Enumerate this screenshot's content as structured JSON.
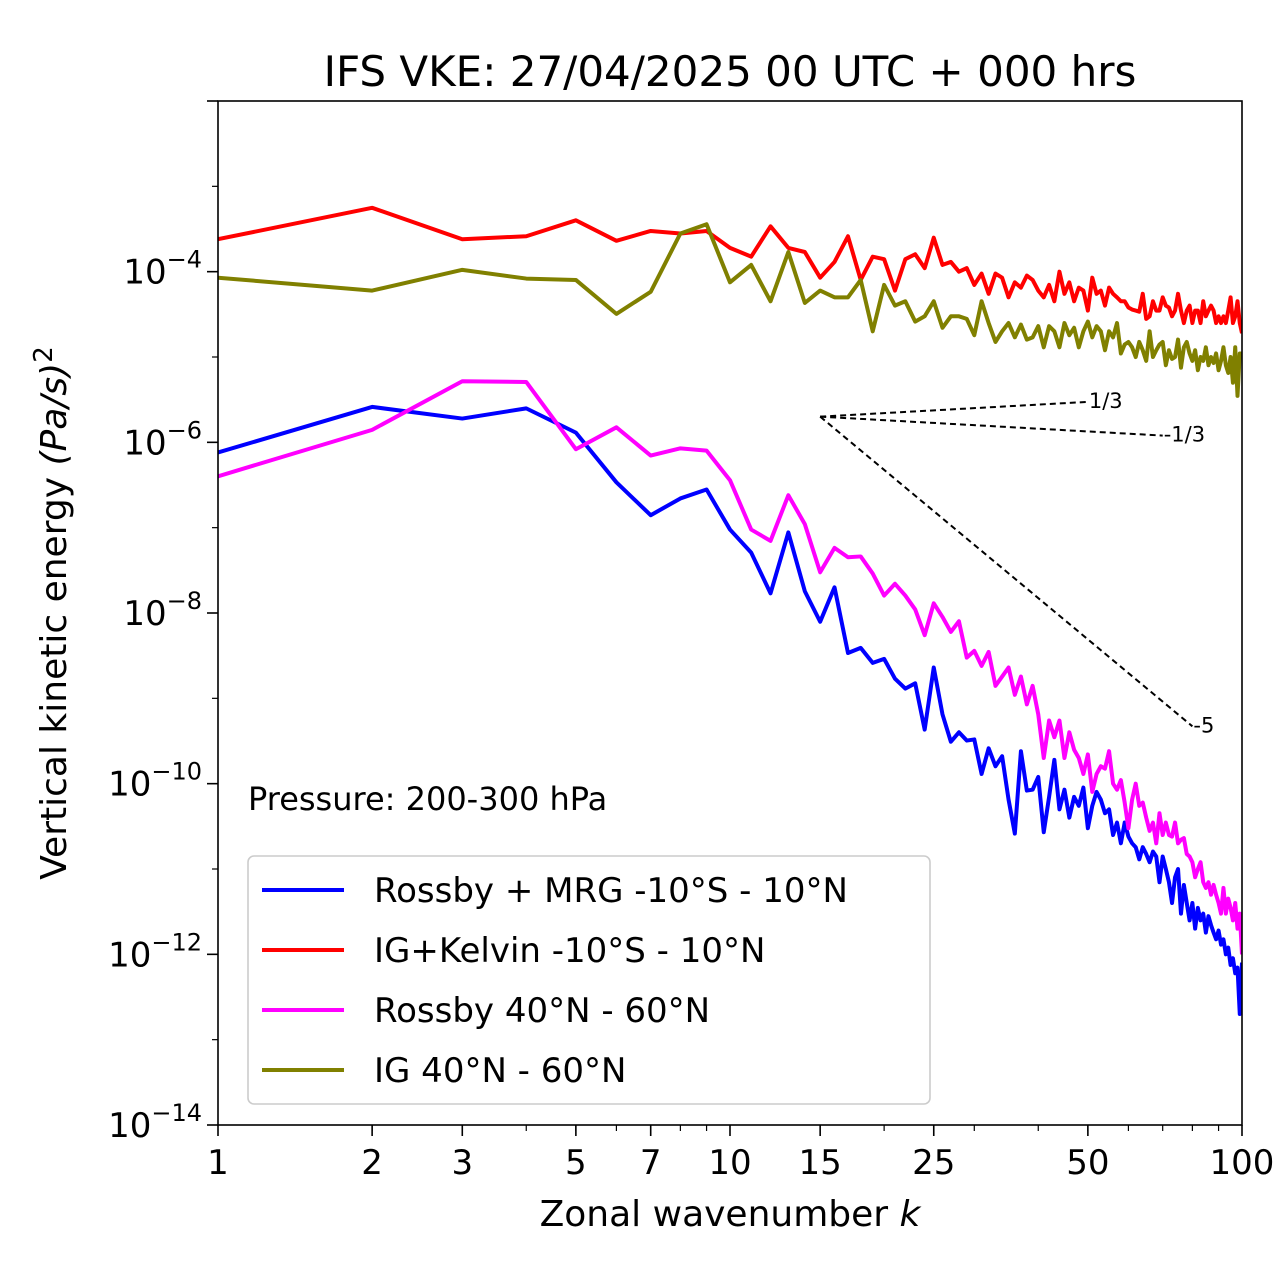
{
  "chart_data": {
    "type": "line",
    "title": "IFS VKE: 27/04/2025 00 UTC + 000 hrs",
    "xlabel": "Zonal wavenumber",
    "xlabel_var": "k",
    "ylabel": "Vertical kinetic energy",
    "ylabel_unit": "(Pa/s)",
    "ylabel_exp": "2",
    "xscale": "log",
    "yscale": "log",
    "xlim": [
      1,
      100
    ],
    "ylim": [
      1e-14,
      0.01
    ],
    "x_ticks": [
      1,
      2,
      3,
      5,
      7,
      10,
      15,
      25,
      50,
      100
    ],
    "y_ticks": [
      {
        "value": 1e-14,
        "base": "10",
        "exp": "−14"
      },
      {
        "value": 1e-12,
        "base": "10",
        "exp": "−12"
      },
      {
        "value": 1e-10,
        "base": "10",
        "exp": "−10"
      },
      {
        "value": 1e-08,
        "base": "10",
        "exp": "−8"
      },
      {
        "value": 1e-06,
        "base": "10",
        "exp": "−6"
      },
      {
        "value": 0.0001,
        "base": "10",
        "exp": "−4"
      }
    ],
    "annotation": "Pressure: 200-300 hPa",
    "legend_position": "lower-left",
    "series": [
      {
        "name": "Rossby + MRG -10°S - 10°N",
        "color": "#0000ff",
        "x": [
          1,
          2,
          3,
          4,
          5,
          6,
          7,
          8,
          9,
          10,
          11,
          12,
          13,
          14,
          15,
          16,
          17,
          18,
          19,
          20,
          21,
          22,
          23,
          24,
          25,
          26,
          27,
          28,
          29,
          30,
          31,
          32,
          33,
          34,
          35,
          36,
          37,
          38,
          39,
          40,
          41,
          42,
          43,
          44,
          45,
          46,
          47,
          48,
          49,
          50,
          51,
          52,
          53,
          54,
          55,
          56,
          57,
          58,
          59,
          60,
          61,
          62,
          63,
          64,
          65,
          66,
          67,
          68,
          69,
          70,
          71,
          72,
          73,
          74,
          75,
          76,
          77,
          78,
          79,
          80,
          81,
          82,
          83,
          84,
          85,
          86,
          87,
          88,
          89,
          90,
          91,
          92,
          93,
          94,
          95,
          96,
          97,
          98,
          99,
          100
        ],
        "y": [
          7.6e-07,
          2.6e-06,
          1.9e-06,
          2.5e-06,
          1.3e-06,
          3.4e-07,
          1.4e-07,
          2.2e-07,
          2.8e-07,
          9.5e-08,
          5.1e-08,
          1.7e-08,
          8.8e-08,
          1.8e-08,
          7.9e-09,
          2e-08,
          3.4e-09,
          3.9e-09,
          2.6e-09,
          2.9e-09,
          1.7e-09,
          1.3e-09,
          1.5e-09,
          4.3e-10,
          2.3e-09,
          6.5e-10,
          3.1e-10,
          4e-10,
          3.2e-10,
          3.3e-10,
          1.3e-10,
          2.6e-10,
          1.6e-10,
          2.1e-10,
          6.5e-11,
          2.6e-11,
          2.4e-10,
          8.3e-11,
          8.5e-11,
          1.2e-10,
          2.7e-11,
          7e-11,
          1.9e-10,
          5e-11,
          8.5e-11,
          4e-11,
          7e-11,
          5.5e-11,
          9e-11,
          3e-11,
          5.5e-11,
          8e-11,
          6.5e-11,
          4.5e-11,
          5e-11,
          2.5e-11,
          3.5e-11,
          2e-11,
          3.5e-11,
          2.4e-11,
          2e-11,
          1.8e-11,
          1.3e-11,
          1.8e-11,
          1.5e-11,
          1.2e-11,
          1.6e-11,
          1.4e-11,
          7e-12,
          1.4e-11,
          1e-11,
          7e-12,
          4e-12,
          8e-12,
          1e-11,
          3e-12,
          6.5e-12,
          4e-12,
          2.5e-12,
          4e-12,
          2e-12,
          3.5e-12,
          2.5e-12,
          3e-12,
          1.8e-12,
          2.8e-12,
          2.2e-12,
          1.8e-12,
          1.5e-12,
          1.9e-12,
          1.3e-12,
          1.5e-12,
          1e-12,
          1.2e-12,
          7.5e-13,
          9e-13,
          6e-13,
          7e-13,
          2e-13,
          8e-13
        ]
      },
      {
        "name": "IG+Kelvin -10°S - 10°N",
        "color": "#ff0000",
        "x": [
          1,
          2,
          3,
          4,
          5,
          6,
          7,
          8,
          9,
          10,
          11,
          12,
          13,
          14,
          15,
          16,
          17,
          18,
          19,
          20,
          21,
          22,
          23,
          24,
          25,
          26,
          27,
          28,
          29,
          30,
          31,
          32,
          33,
          34,
          35,
          36,
          37,
          38,
          39,
          40,
          41,
          42,
          43,
          44,
          45,
          46,
          47,
          48,
          49,
          50,
          51,
          52,
          53,
          54,
          55,
          56,
          57,
          58,
          59,
          60,
          61,
          62,
          63,
          64,
          65,
          66,
          67,
          68,
          69,
          70,
          71,
          72,
          73,
          74,
          75,
          76,
          77,
          78,
          79,
          80,
          81,
          82,
          83,
          84,
          85,
          86,
          87,
          88,
          89,
          90,
          91,
          92,
          93,
          94,
          95,
          96,
          97,
          98,
          99,
          100
        ],
        "y": [
          0.00024,
          0.00056,
          0.00024,
          0.00026,
          0.0004,
          0.00023,
          0.0003,
          0.00028,
          0.0003,
          0.00019,
          0.00015,
          0.00034,
          0.00019,
          0.00017,
          8.5e-05,
          0.00013,
          0.00026,
          8e-05,
          0.00015,
          0.00014,
          6e-05,
          0.00014,
          0.00016,
          0.00011,
          0.00025,
          0.00012,
          0.00013,
          0.0001,
          0.00011,
          7e-05,
          9.5e-05,
          5.5e-05,
          9.5e-05,
          8.5e-05,
          5e-05,
          7.5e-05,
          6.5e-05,
          9e-05,
          8e-05,
          6e-05,
          5e-05,
          7e-05,
          4.5e-05,
          0.0001,
          5.5e-05,
          7.5e-05,
          4.5e-05,
          6.5e-05,
          6e-05,
          3.5e-05,
          8.5e-05,
          5.5e-05,
          6e-05,
          4e-05,
          6.5e-05,
          5.5e-05,
          5e-05,
          4.5e-05,
          4.5e-05,
          3.8e-05,
          3.6e-05,
          3.5e-05,
          3.4e-05,
          5.5e-05,
          2.8e-05,
          3e-05,
          4.5e-05,
          3.5e-05,
          3.5e-05,
          5e-05,
          4e-05,
          3.8e-05,
          3e-05,
          3.5e-05,
          5.5e-05,
          3.5e-05,
          2.5e-05,
          3.5e-05,
          4e-05,
          2.5e-05,
          3.5e-05,
          3.5e-05,
          2.5e-05,
          4.5e-05,
          3e-05,
          3.5e-05,
          4e-05,
          3.5e-05,
          2.5e-05,
          3e-05,
          2.5e-05,
          3e-05,
          2.5e-05,
          3.5e-05,
          5e-05,
          2.5e-05,
          3e-05,
          4.5e-05,
          2.5e-05,
          1.9e-05
        ]
      },
      {
        "name": "Rossby 40°N - 60°N",
        "color": "#ff00ff",
        "x": [
          1,
          2,
          3,
          4,
          5,
          6,
          7,
          8,
          9,
          10,
          11,
          12,
          13,
          14,
          15,
          16,
          17,
          18,
          19,
          20,
          21,
          22,
          23,
          24,
          25,
          26,
          27,
          28,
          29,
          30,
          31,
          32,
          33,
          34,
          35,
          36,
          37,
          38,
          39,
          40,
          41,
          42,
          43,
          44,
          45,
          46,
          47,
          48,
          49,
          50,
          51,
          52,
          53,
          54,
          55,
          56,
          57,
          58,
          59,
          60,
          61,
          62,
          63,
          64,
          65,
          66,
          67,
          68,
          69,
          70,
          71,
          72,
          73,
          74,
          75,
          76,
          77,
          78,
          79,
          80,
          81,
          82,
          83,
          84,
          85,
          86,
          87,
          88,
          89,
          90,
          91,
          92,
          93,
          94,
          95,
          96,
          97,
          98,
          99,
          100
        ],
        "y": [
          4e-07,
          1.4e-06,
          5.2e-06,
          5.1e-06,
          8.3e-07,
          1.5e-06,
          7e-07,
          8.5e-07,
          8e-07,
          3.6e-07,
          9.5e-08,
          7e-08,
          2.4e-07,
          1.1e-07,
          3e-08,
          5.8e-08,
          4.5e-08,
          4.6e-08,
          2.9e-08,
          1.6e-08,
          2.2e-08,
          1.6e-08,
          1.1e-08,
          5.5e-09,
          1.3e-08,
          9e-09,
          6e-09,
          8e-09,
          3e-09,
          3.6e-09,
          2.4e-09,
          3.5e-09,
          1.4e-09,
          1.8e-09,
          2.3e-09,
          1.1e-09,
          1.8e-09,
          8.5e-10,
          1.4e-09,
          6.5e-10,
          2e-10,
          5.5e-10,
          3.5e-10,
          5.5e-10,
          2e-10,
          4e-10,
          2.5e-10,
          2e-10,
          1.3e-10,
          2.2e-10,
          8e-11,
          1.3e-10,
          1.6e-10,
          1.5e-10,
          2.4e-10,
          1e-10,
          8.5e-11,
          1.1e-10,
          6e-11,
          3e-11,
          6.5e-11,
          1e-10,
          5.5e-11,
          6e-11,
          4e-11,
          2.8e-11,
          3.5e-11,
          2e-11,
          4.5e-11,
          2.5e-11,
          3.5e-11,
          2.5e-11,
          2.4e-11,
          3.5e-11,
          2e-11,
          2.2e-11,
          2.3e-11,
          1.5e-11,
          1.4e-11,
          1.2e-11,
          8e-12,
          1e-11,
          1.2e-11,
          7e-12,
          6e-12,
          7e-12,
          5e-12,
          6.5e-12,
          5e-12,
          4e-12,
          3e-12,
          6e-12,
          3e-12,
          4.5e-12,
          3.5e-12,
          2.5e-12,
          4e-12,
          2e-12,
          3e-12,
          1e-12
        ]
      },
      {
        "name": "IG 40°N - 60°N",
        "color": "#808000",
        "x": [
          1,
          2,
          3,
          4,
          5,
          6,
          7,
          8,
          9,
          10,
          11,
          12,
          13,
          14,
          15,
          16,
          17,
          18,
          19,
          20,
          21,
          22,
          23,
          24,
          25,
          26,
          27,
          28,
          29,
          30,
          31,
          32,
          33,
          34,
          35,
          36,
          37,
          38,
          39,
          40,
          41,
          42,
          43,
          44,
          45,
          46,
          47,
          48,
          49,
          50,
          51,
          52,
          53,
          54,
          55,
          56,
          57,
          58,
          59,
          60,
          61,
          62,
          63,
          64,
          65,
          66,
          67,
          68,
          69,
          70,
          71,
          72,
          73,
          74,
          75,
          76,
          77,
          78,
          79,
          80,
          81,
          82,
          83,
          84,
          85,
          86,
          87,
          88,
          89,
          90,
          91,
          92,
          93,
          94,
          95,
          96,
          97,
          98,
          99,
          100
        ],
        "y": [
          8.5e-05,
          6e-05,
          0.000105,
          8.3e-05,
          8e-05,
          3.2e-05,
          5.8e-05,
          0.00028,
          0.00036,
          7.5e-05,
          0.00012,
          4.5e-05,
          0.00017,
          4.3e-05,
          6e-05,
          5e-05,
          5e-05,
          8e-05,
          2e-05,
          7e-05,
          4e-05,
          4.5e-05,
          2.6e-05,
          3e-05,
          4.5e-05,
          2.2e-05,
          3e-05,
          3e-05,
          2.8e-05,
          1.8e-05,
          4.5e-05,
          2.5e-05,
          1.5e-05,
          2e-05,
          2.5e-05,
          1.7e-05,
          2.4e-05,
          1.6e-05,
          1.7e-05,
          2.3e-05,
          1.3e-05,
          2.3e-05,
          2e-05,
          1.3e-05,
          2.5e-05,
          1.8e-05,
          2.2e-05,
          1.3e-05,
          2e-05,
          2.6e-05,
          1.7e-05,
          2.3e-05,
          2e-05,
          1.2e-05,
          2e-05,
          1.7e-05,
          2.5e-05,
          1.1e-05,
          1.4e-05,
          1.5e-05,
          1.3e-05,
          1e-05,
          1.5e-05,
          1.2e-05,
          9e-06,
          2e-05,
          1e-05,
          1.2e-05,
          1.4e-05,
          1.5e-05,
          8e-06,
          1.2e-05,
          9.5e-06,
          1e-05,
          1.6e-05,
          7.5e-06,
          1.3e-05,
          1.5e-05,
          1.1e-05,
          9e-06,
          1.2e-05,
          7e-06,
          1e-05,
          9e-06,
          1.3e-05,
          8e-06,
          1e-05,
          8.5e-06,
          1.1e-05,
          7e-06,
          9e-06,
          1.3e-05,
          8e-06,
          6.5e-06,
          1e-05,
          5e-06,
          1.3e-05,
          3.5e-06,
          1.1e-05,
          1.1e-05
        ]
      }
    ],
    "reference_lines": [
      {
        "label": "1/3",
        "x": [
          15,
          50
        ],
        "y": [
          2e-06,
          2.98e-06
        ]
      },
      {
        "label": "-1/3",
        "x": [
          15,
          70
        ],
        "y": [
          2e-06,
          1.2e-06
        ]
      },
      {
        "label": "-5",
        "x": [
          15,
          80
        ],
        "y": [
          2e-06,
          4.7e-10
        ]
      }
    ]
  }
}
